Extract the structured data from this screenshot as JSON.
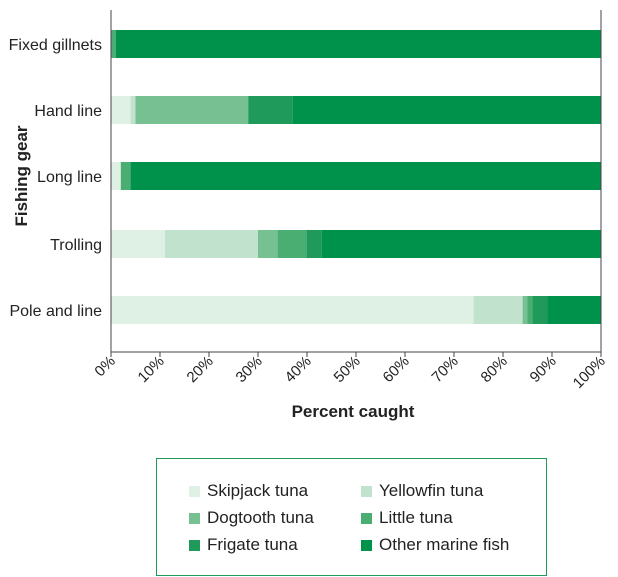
{
  "chart_data": {
    "type": "bar",
    "orientation": "horizontal",
    "stacked": true,
    "title": "",
    "xlabel": "Percent caught",
    "ylabel": "Fishing gear",
    "xlim": [
      0,
      100
    ],
    "x_ticks": [
      "0%",
      "10%",
      "20%",
      "30%",
      "40%",
      "50%",
      "60%",
      "70%",
      "80%",
      "90%",
      "100%"
    ],
    "grid": false,
    "legend_position": "bottom",
    "categories": [
      "Fixed gillnets",
      "Hand line",
      "Long line",
      "Trolling",
      "Pole and line"
    ],
    "series": [
      {
        "name": "Skipjack tuna",
        "color": "#dff0e5",
        "values": [
          0,
          4,
          2,
          11,
          74
        ]
      },
      {
        "name": "Yellowfin tuna",
        "color": "#c1e2cd",
        "values": [
          0,
          1,
          0,
          19,
          10
        ]
      },
      {
        "name": "Dogtooth tuna",
        "color": "#77c092",
        "values": [
          0,
          23,
          0,
          4,
          1
        ]
      },
      {
        "name": "Little tuna",
        "color": "#4aae72",
        "values": [
          1,
          0,
          2,
          6,
          1
        ]
      },
      {
        "name": "Frigate tuna",
        "color": "#1f9a5a",
        "values": [
          0,
          9,
          0,
          3,
          3
        ]
      },
      {
        "name": "Other marine fish",
        "color": "#00914a",
        "values": [
          99,
          63,
          96,
          57,
          11
        ]
      }
    ]
  }
}
